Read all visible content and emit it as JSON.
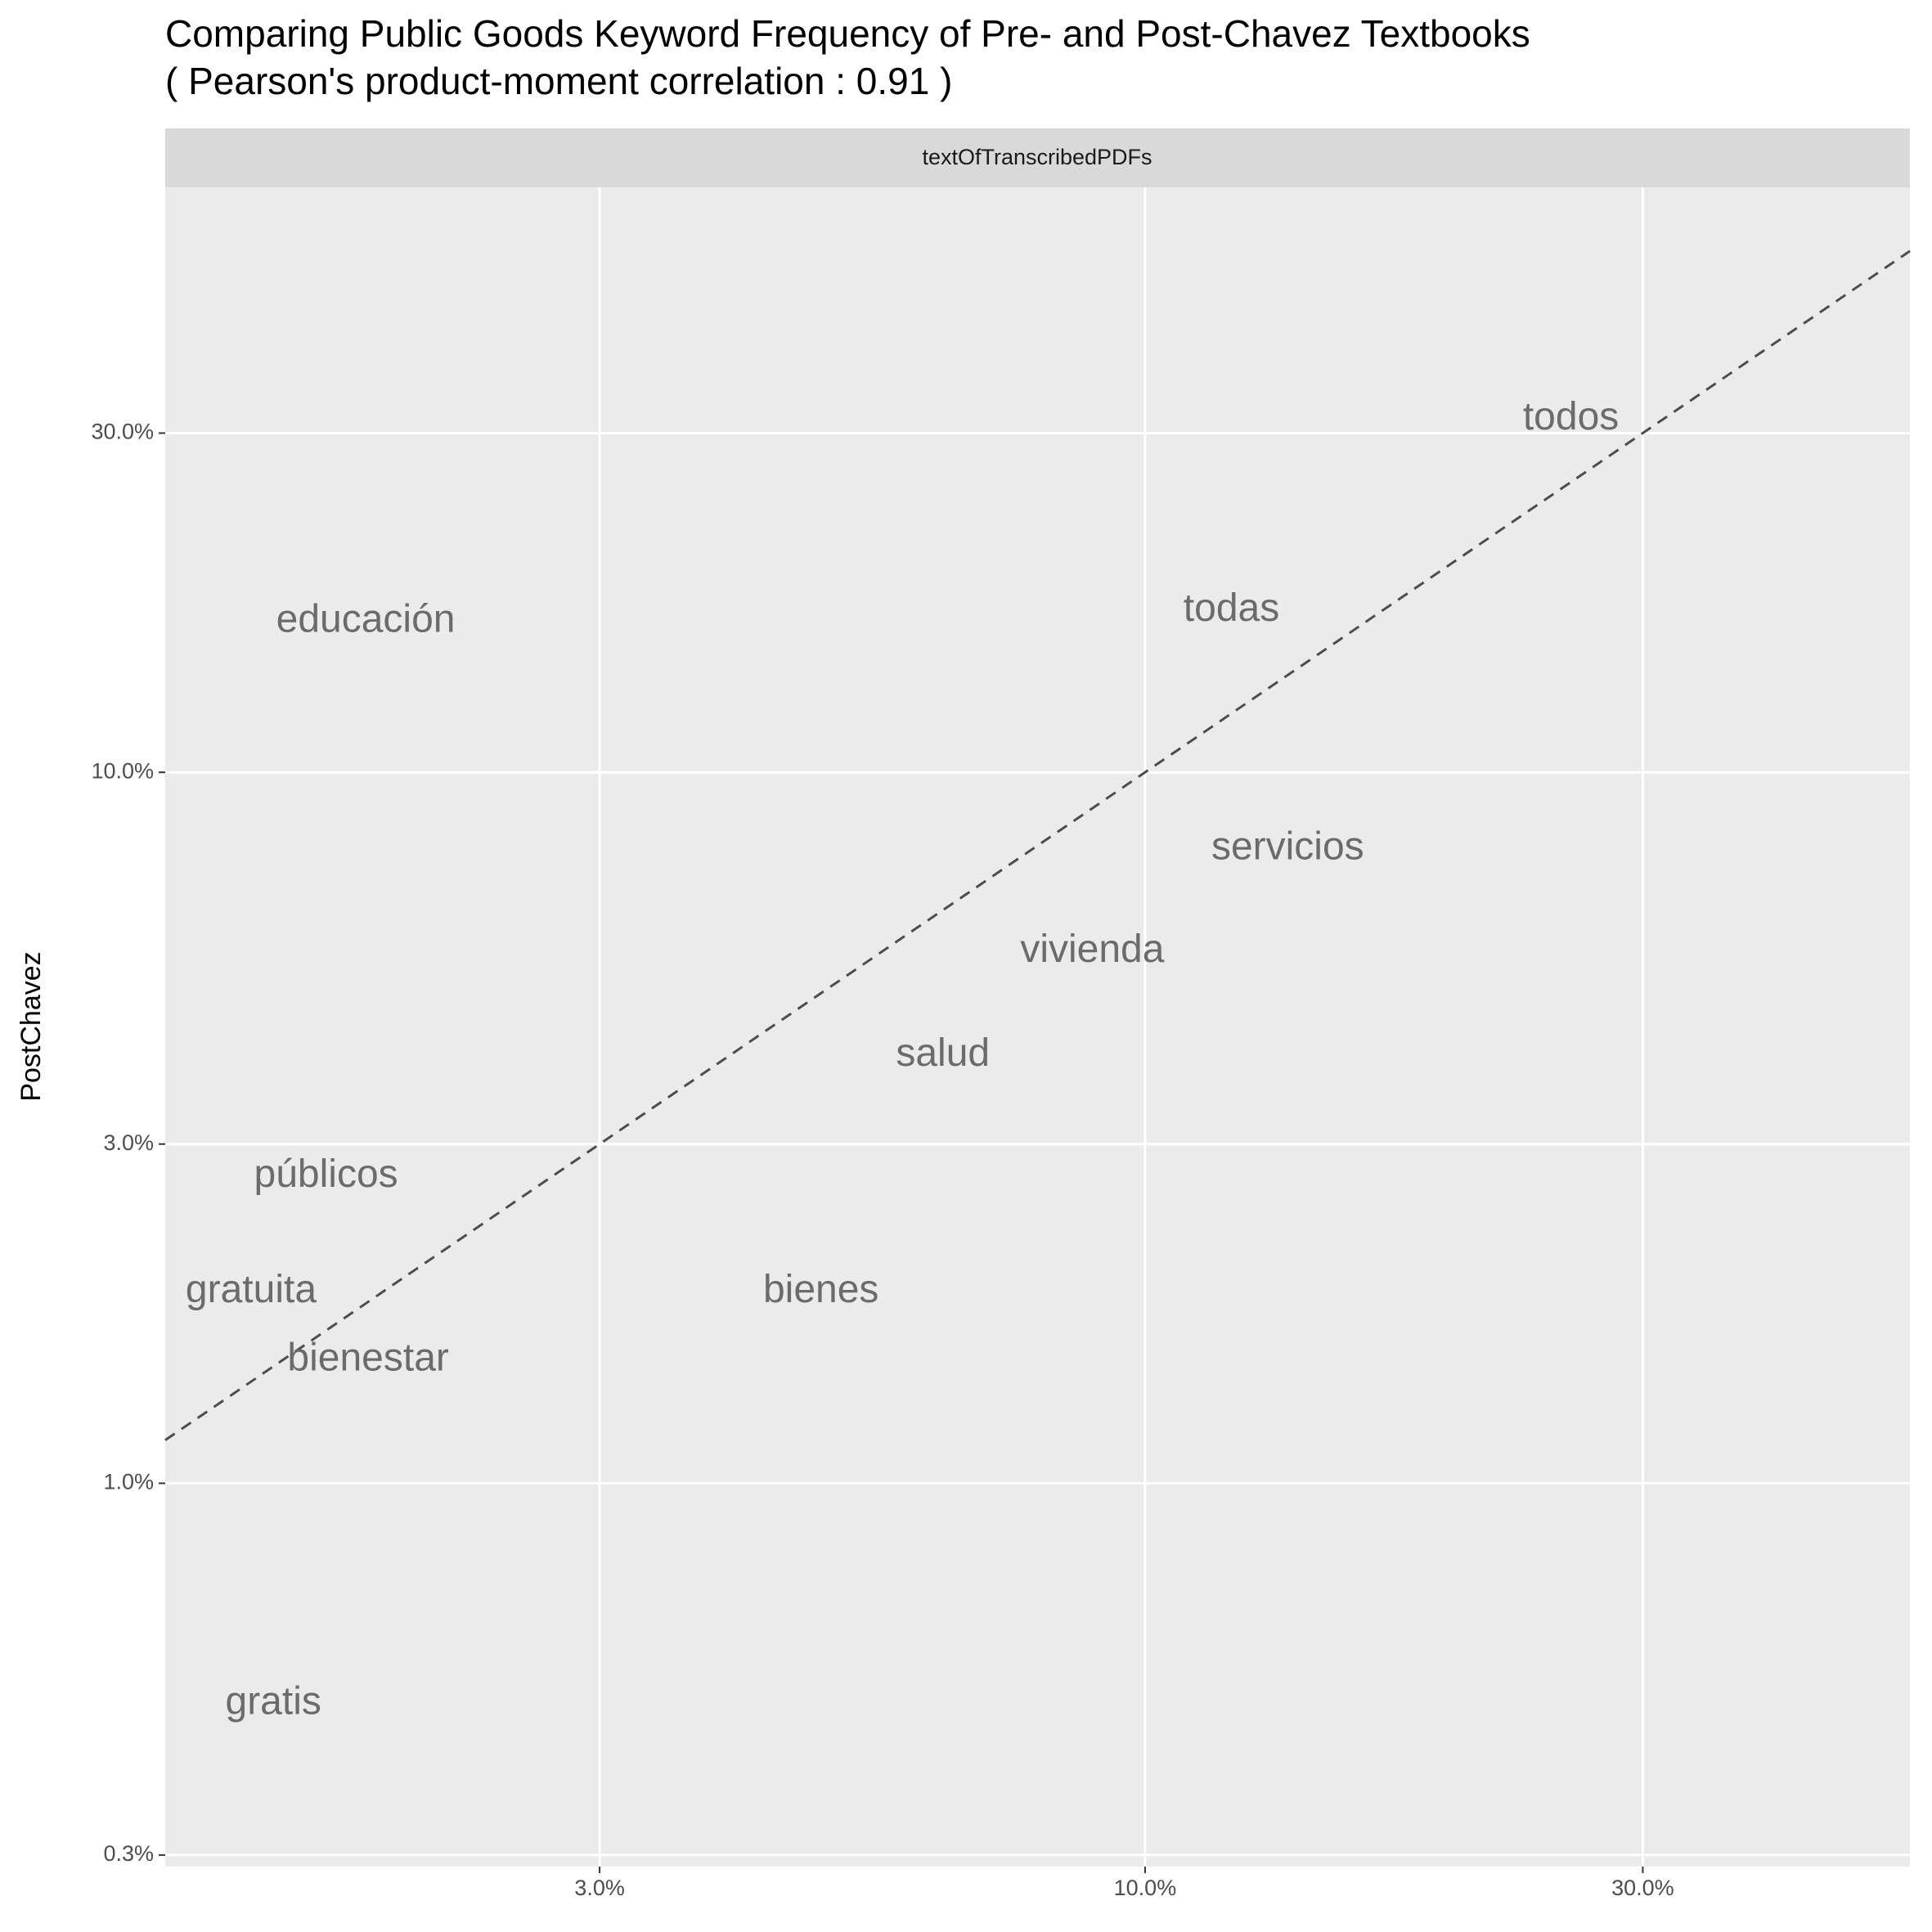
{
  "chart_data": {
    "type": "text_scatter",
    "title": "Comparing Public Goods Keyword Frequency of Pre- and Post-Chavez Textbooks",
    "subtitle": "( Pearson's product-moment correlation :  0.91 )",
    "facet": "textOfTranscribedPDFs",
    "y_label": "PostChavez",
    "x_log": true,
    "y_log": true,
    "grid": true,
    "color": "#6b6b6b",
    "line_color": "#4d4d4d",
    "labels": [
      "todos",
      "todas",
      "educación",
      "servicios",
      "vivienda",
      "salud",
      "públicos",
      "gratuita",
      "bienes",
      "bienestar",
      "gratis"
    ],
    "x": [
      25.6,
      12.1,
      1.79,
      13.7,
      8.9,
      6.4,
      1.64,
      1.39,
      4.89,
      1.8,
      1.46
    ],
    "y": [
      31.4,
      16.9,
      16.3,
      7.8,
      5.6,
      4.0,
      2.7,
      1.86,
      1.86,
      1.49,
      0.49
    ],
    "xlim": [
      1.15,
      54.1
    ],
    "ylim": [
      0.289,
      66.5
    ],
    "xticks": [
      {
        "value": 3,
        "label": "3.0%"
      },
      {
        "value": 10,
        "label": "10.0%"
      },
      {
        "value": 30,
        "label": "30.0%"
      }
    ],
    "yticks": [
      {
        "value": 0.3,
        "label": "0.3%"
      },
      {
        "value": 1,
        "label": "1.0%"
      },
      {
        "value": 3,
        "label": "3.0%"
      },
      {
        "value": 10,
        "label": "10.0%"
      },
      {
        "value": 30,
        "label": "30.0%"
      }
    ]
  }
}
